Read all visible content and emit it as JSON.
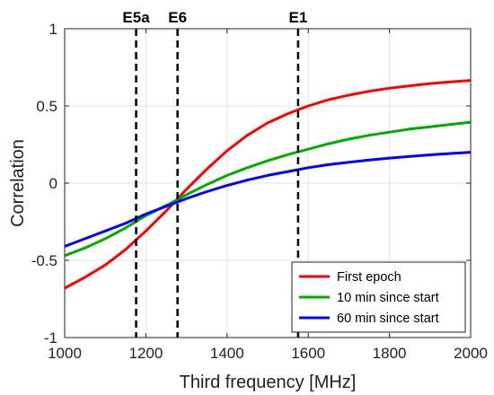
{
  "chart_data": {
    "type": "line",
    "xlabel": "Third frequency [MHz]",
    "ylabel": "Correlation",
    "xlim": [
      1000,
      2000
    ],
    "ylim": [
      -1,
      1
    ],
    "xticks": [
      1000,
      1200,
      1400,
      1600,
      1800,
      2000
    ],
    "yticks": [
      -1,
      -0.5,
      0,
      0.5,
      1
    ],
    "xtick_labels": [
      "1000",
      "1200",
      "1400",
      "1600",
      "1800",
      "2000"
    ],
    "ytick_labels": [
      "-1",
      "-0.5",
      "0",
      "0.5",
      "1"
    ],
    "grid": true,
    "legend_position": "bottom-right",
    "x": [
      1000,
      1050,
      1100,
      1150,
      1200,
      1250,
      1300,
      1350,
      1400,
      1450,
      1500,
      1550,
      1600,
      1650,
      1700,
      1750,
      1800,
      1850,
      1900,
      1950,
      2000
    ],
    "series": [
      {
        "name": "First epoch",
        "color": "#ff0000",
        "values": [
          -0.68,
          -0.61,
          -0.53,
          -0.43,
          -0.31,
          -0.18,
          -0.04,
          0.09,
          0.21,
          0.31,
          0.39,
          0.45,
          0.5,
          0.54,
          0.57,
          0.595,
          0.615,
          0.63,
          0.645,
          0.655,
          0.665
        ]
      },
      {
        "name": "10 min since start",
        "color": "#00aa00",
        "values": [
          -0.47,
          -0.42,
          -0.36,
          -0.29,
          -0.21,
          -0.145,
          -0.075,
          -0.01,
          0.05,
          0.1,
          0.145,
          0.185,
          0.22,
          0.255,
          0.285,
          0.31,
          0.33,
          0.35,
          0.365,
          0.38,
          0.395
        ]
      },
      {
        "name": "60 min since start",
        "color": "#0000ff",
        "values": [
          -0.41,
          -0.36,
          -0.31,
          -0.26,
          -0.2,
          -0.15,
          -0.1,
          -0.055,
          -0.015,
          0.02,
          0.05,
          0.075,
          0.1,
          0.12,
          0.135,
          0.15,
          0.162,
          0.173,
          0.183,
          0.192,
          0.2
        ]
      }
    ],
    "vlines": [
      {
        "label": "E5a",
        "x": 1176
      },
      {
        "label": "E6",
        "x": 1278
      },
      {
        "label": "E1",
        "x": 1575
      }
    ]
  }
}
